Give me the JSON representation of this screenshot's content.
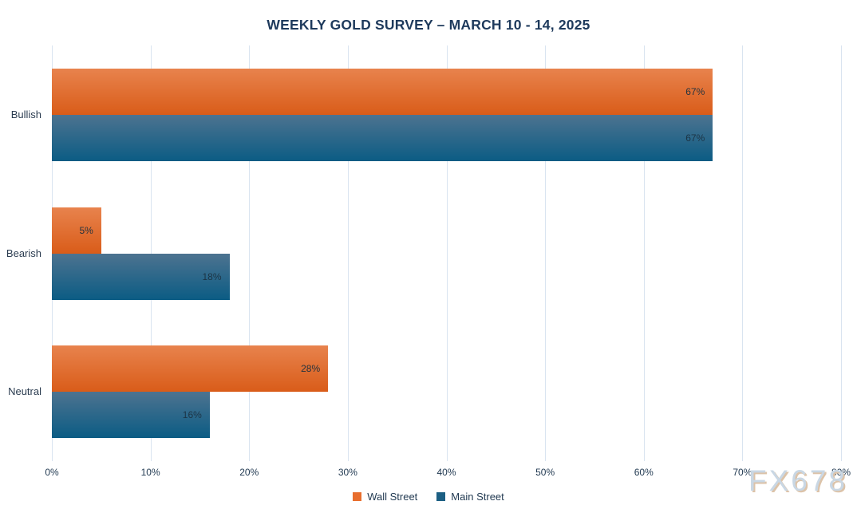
{
  "chart_data": {
    "type": "bar",
    "orientation": "horizontal",
    "title": "WEEKLY GOLD SURVEY – MARCH 10 - 14, 2025",
    "categories": [
      "Bullish",
      "Bearish",
      "Neutral"
    ],
    "series": [
      {
        "name": "Wall Street",
        "values": [
          67,
          5,
          28
        ],
        "color_top": "#E8834D",
        "color_bottom": "#D95C19",
        "legend_color": "#E86E2E"
      },
      {
        "name": "Main Street",
        "values": [
          67,
          18,
          16
        ],
        "color_top": "#4D7390",
        "color_bottom": "#0B5C84",
        "legend_color": "#1C5F83"
      }
    ],
    "value_label_format": "percent",
    "xlabel": "",
    "ylabel": "",
    "xlim": [
      0,
      80
    ],
    "x_ticks": [
      "0%",
      "10%",
      "20%",
      "30%",
      "40%",
      "50%",
      "60%",
      "70%",
      "80%"
    ],
    "x_tick_values": [
      0,
      10,
      20,
      30,
      40,
      50,
      60,
      70,
      80
    ],
    "grid": "vertical",
    "gridline_color": "#D9E4F0",
    "legend_position": "bottom-center",
    "title_color": "#1E3A5C",
    "text_color": "#223A52"
  },
  "watermark": {
    "text": "FX678"
  }
}
